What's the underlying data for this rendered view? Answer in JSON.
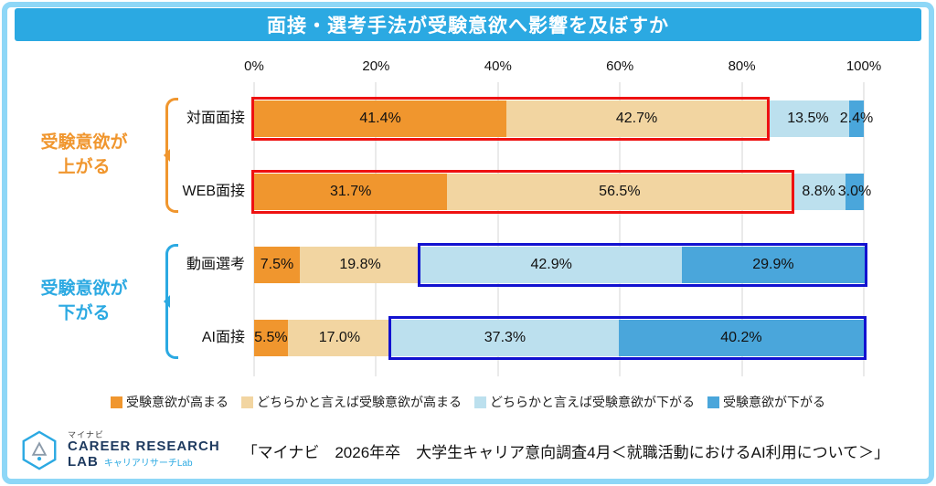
{
  "title": "面接・選考手法が受験意欲へ影響を及ぼすか",
  "colors": {
    "frame_border": "#8ED7F7",
    "title_bar": "#2BA9E2",
    "grid": "#D4D4D4"
  },
  "chart_data": {
    "type": "bar",
    "orientation": "horizontal",
    "stacked": true,
    "unit": "%",
    "x_ticks": [
      "0%",
      "20%",
      "40%",
      "60%",
      "80%",
      "100%"
    ],
    "x_range": [
      0,
      100
    ],
    "grid": true,
    "legend_position": "bottom",
    "categories": [
      "対面面接",
      "WEB面接",
      "動画選考",
      "AI面接"
    ],
    "series": [
      {
        "name": "受験意欲が高まる",
        "color": "#F0962E",
        "values": [
          41.4,
          31.7,
          7.5,
          5.5
        ]
      },
      {
        "name": "どちらかと言えば受験意欲が高まる",
        "color": "#F2D5A1",
        "values": [
          42.7,
          56.5,
          19.8,
          17.0
        ]
      },
      {
        "name": "どちらかと言えば受験意欲が下がる",
        "color": "#BCE0EE",
        "values": [
          13.5,
          8.8,
          42.9,
          37.3
        ]
      },
      {
        "name": "受験意欲が下がる",
        "color": "#4AA6DB",
        "values": [
          2.4,
          3.0,
          29.9,
          40.2
        ]
      }
    ],
    "groups": [
      {
        "label_lines": [
          "受験意欲が",
          "上がる"
        ],
        "rows": [
          0,
          1
        ],
        "color": "#F0962E",
        "box_color": "#EE1111",
        "box_segments": [
          0,
          2
        ]
      },
      {
        "label_lines": [
          "受験意欲が",
          "下がる"
        ],
        "rows": [
          2,
          3
        ],
        "color": "#2BA9E2",
        "box_color": "#1212D0",
        "box_segments": [
          2,
          4
        ]
      }
    ]
  },
  "footer": {
    "logo": {
      "brand": "マイナビ",
      "line1": "CAREER RESEARCH",
      "line2": "LAB",
      "sub": "キャリアリサーチLab"
    },
    "citation": "「マイナビ　2026年卒　大学生キャリア意向調査4月＜就職活動におけるAI利用について＞」"
  }
}
